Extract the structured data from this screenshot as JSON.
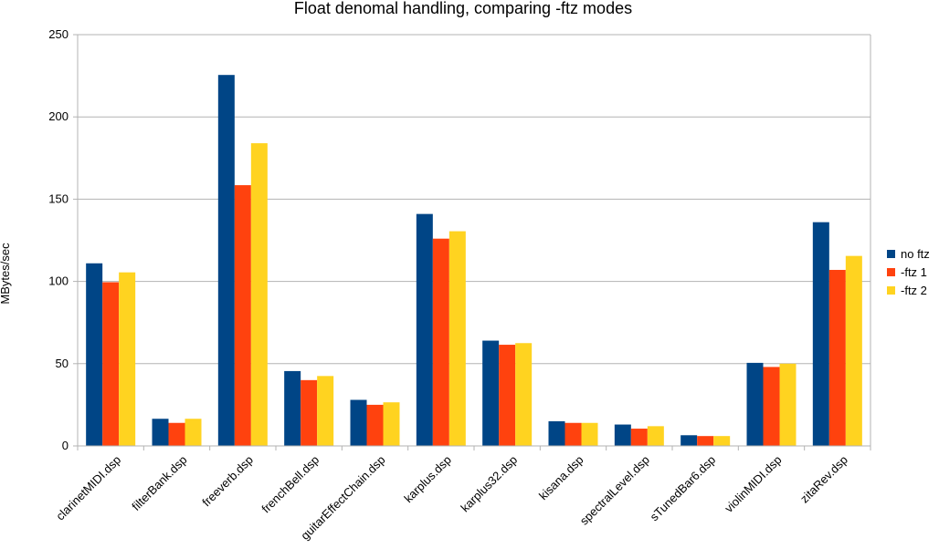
{
  "chart_data": {
    "type": "bar",
    "title": "Float denomal handling, comparing -ftz modes",
    "xlabel": "",
    "ylabel": "MBytes/sec",
    "ylim": [
      0,
      250
    ],
    "yticks": [
      "0",
      "50",
      "100",
      "150",
      "200",
      "250"
    ],
    "grid": true,
    "legend_position": "right",
    "categories": [
      "clarinetMIDI.dsp",
      "filterBank.dsp",
      "freeverb.dsp",
      "frenchBell.dsp",
      "guitarEffectChain.dsp",
      "karplus.dsp",
      "karplus32.dsp",
      "kisana.dsp",
      "spectralLevel.dsp",
      "sTunedBar6.dsp",
      "violinMIDI.dsp",
      "zitaRev.dsp"
    ],
    "series": [
      {
        "name": "no ftz",
        "color": "#004586",
        "values": [
          111,
          16.5,
          225.5,
          45.5,
          28,
          141,
          64,
          15,
          13,
          6.5,
          50.5,
          136
        ]
      },
      {
        "name": "-ftz 1",
        "color": "#ff420e",
        "values": [
          99.5,
          14,
          158.5,
          40,
          25,
          126,
          61.5,
          14,
          10.5,
          6,
          48,
          107
        ]
      },
      {
        "name": "-ftz 2",
        "color": "#ffd320",
        "values": [
          105.5,
          16.5,
          184,
          42.5,
          26.5,
          130.5,
          62.5,
          14,
          12,
          6,
          50,
          115.5
        ]
      }
    ]
  }
}
